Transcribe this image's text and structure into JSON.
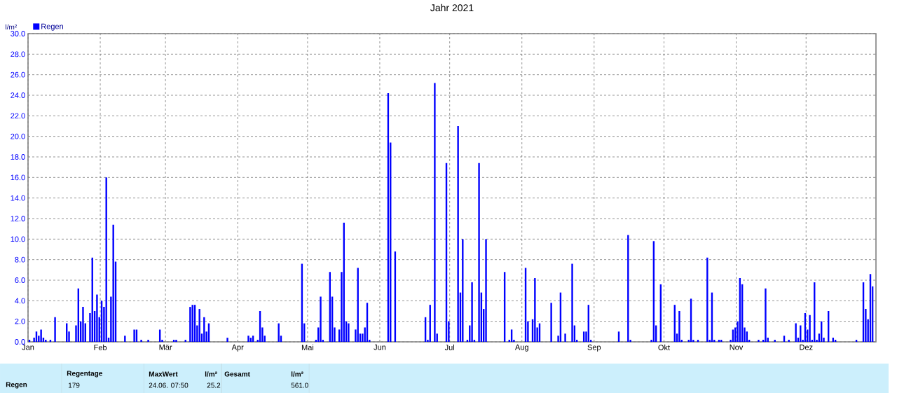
{
  "chart_data": {
    "type": "bar",
    "title": "Jahr 2021",
    "ylabel": "l/m²",
    "x": [
      "2021-01-01",
      "2021-01-03",
      "2021-01-04",
      "2021-01-05",
      "2021-01-06",
      "2021-01-07",
      "2021-01-08",
      "2021-01-10",
      "2021-01-12",
      "2021-01-17",
      "2021-01-18",
      "2021-01-21",
      "2021-01-22",
      "2021-01-23",
      "2021-01-24",
      "2021-01-25",
      "2021-01-27",
      "2021-01-28",
      "2021-01-29",
      "2021-01-30",
      "2021-01-31",
      "2021-02-01",
      "2021-02-02",
      "2021-02-03",
      "2021-02-04",
      "2021-02-05",
      "2021-02-06",
      "2021-02-07",
      "2021-02-11",
      "2021-02-15",
      "2021-02-16",
      "2021-02-18",
      "2021-02-21",
      "2021-02-26",
      "2021-02-27",
      "2021-03-04",
      "2021-03-05",
      "2021-03-09",
      "2021-03-11",
      "2021-03-12",
      "2021-03-13",
      "2021-03-14",
      "2021-03-15",
      "2021-03-16",
      "2021-03-17",
      "2021-03-18",
      "2021-03-19",
      "2021-03-27",
      "2021-04-05",
      "2021-04-06",
      "2021-04-07",
      "2021-04-09",
      "2021-04-10",
      "2021-04-11",
      "2021-04-12",
      "2021-04-18",
      "2021-04-19",
      "2021-04-28",
      "2021-04-29",
      "2021-05-04",
      "2021-05-05",
      "2021-05-06",
      "2021-05-07",
      "2021-05-10",
      "2021-05-11",
      "2021-05-12",
      "2021-05-14",
      "2021-05-15",
      "2021-05-16",
      "2021-05-17",
      "2021-05-18",
      "2021-05-21",
      "2021-05-22",
      "2021-05-23",
      "2021-05-24",
      "2021-05-25",
      "2021-05-26",
      "2021-05-27",
      "2021-06-04",
      "2021-06-05",
      "2021-06-07",
      "2021-06-20",
      "2021-06-21",
      "2021-06-22",
      "2021-06-24",
      "2021-06-25",
      "2021-06-29",
      "2021-06-30",
      "2021-07-04",
      "2021-07-05",
      "2021-07-06",
      "2021-07-08",
      "2021-07-09",
      "2021-07-10",
      "2021-07-11",
      "2021-07-13",
      "2021-07-14",
      "2021-07-15",
      "2021-07-16",
      "2021-07-24",
      "2021-07-26",
      "2021-07-27",
      "2021-07-28",
      "2021-08-02",
      "2021-08-03",
      "2021-08-05",
      "2021-08-06",
      "2021-08-07",
      "2021-08-08",
      "2021-08-13",
      "2021-08-16",
      "2021-08-17",
      "2021-08-19",
      "2021-08-22",
      "2021-08-23",
      "2021-08-24",
      "2021-08-27",
      "2021-08-28",
      "2021-08-29",
      "2021-08-30",
      "2021-09-11",
      "2021-09-15",
      "2021-09-16",
      "2021-09-25",
      "2021-09-26",
      "2021-09-27",
      "2021-09-29",
      "2021-10-05",
      "2021-10-06",
      "2021-10-07",
      "2021-10-08",
      "2021-10-11",
      "2021-10-12",
      "2021-10-13",
      "2021-10-15",
      "2021-10-19",
      "2021-10-20",
      "2021-10-21",
      "2021-10-22",
      "2021-10-24",
      "2021-10-25",
      "2021-10-29",
      "2021-10-30",
      "2021-10-31",
      "2021-11-01",
      "2021-11-02",
      "2021-11-03",
      "2021-11-04",
      "2021-11-05",
      "2021-11-06",
      "2021-11-10",
      "2021-11-12",
      "2021-11-13",
      "2021-11-14",
      "2021-11-17",
      "2021-11-21",
      "2021-11-23",
      "2021-11-26",
      "2021-11-27",
      "2021-11-28",
      "2021-11-29",
      "2021-11-30",
      "2021-12-01",
      "2021-12-02",
      "2021-12-03",
      "2021-12-04",
      "2021-12-05",
      "2021-12-06",
      "2021-12-07",
      "2021-12-08",
      "2021-12-10",
      "2021-12-12",
      "2021-12-13",
      "2021-12-22",
      "2021-12-25",
      "2021-12-26",
      "2021-12-27",
      "2021-12-28",
      "2021-12-29"
    ],
    "series": [
      {
        "name": "Regen",
        "color": "#0000ff",
        "values": [
          0.2,
          0.4,
          1.0,
          0.6,
          1.2,
          0.4,
          0.2,
          0.2,
          2.4,
          1.8,
          1.0,
          1.6,
          5.2,
          2.0,
          3.4,
          1.8,
          2.8,
          8.2,
          3.0,
          4.6,
          2.4,
          4.0,
          3.4,
          16.0,
          0.4,
          4.4,
          11.4,
          7.8,
          0.6,
          1.2,
          1.2,
          0.2,
          0.2,
          1.2,
          0.2,
          0.2,
          0.2,
          0.2,
          3.4,
          3.6,
          3.6,
          1.6,
          3.2,
          0.8,
          2.4,
          1.0,
          1.8,
          0.4,
          0.6,
          0.4,
          0.6,
          0.2,
          3.0,
          1.4,
          0.6,
          1.8,
          0.6,
          7.6,
          1.8,
          0.2,
          1.4,
          4.4,
          0.2,
          6.8,
          4.4,
          1.4,
          1.2,
          6.8,
          11.6,
          2.0,
          1.8,
          1.2,
          7.2,
          0.8,
          0.8,
          1.4,
          3.8,
          0.2,
          24.2,
          19.4,
          8.8,
          2.4,
          0.2,
          3.6,
          25.2,
          0.8,
          17.4,
          2.0,
          21.0,
          4.8,
          10.0,
          0.2,
          1.6,
          5.8,
          0.2,
          17.4,
          4.8,
          3.2,
          10.0,
          6.8,
          0.2,
          1.2,
          0.2,
          7.2,
          2.0,
          2.2,
          6.2,
          1.4,
          1.8,
          3.8,
          0.6,
          4.8,
          0.8,
          7.6,
          1.6,
          0.2,
          1.0,
          1.0,
          3.6,
          0.2,
          1.0,
          10.4,
          0.2,
          0.2,
          9.8,
          1.6,
          5.6,
          3.6,
          0.8,
          3.0,
          0.2,
          0.2,
          4.2,
          0.2,
          0.2,
          8.2,
          0.2,
          4.8,
          0.2,
          0.2,
          0.2,
          0.2,
          1.2,
          1.4,
          2.0,
          6.2,
          5.6,
          1.4,
          1.0,
          0.2,
          0.2,
          0.2,
          5.2,
          0.4,
          0.2,
          0.6,
          0.2,
          1.8,
          0.4,
          1.6,
          0.2,
          2.8,
          1.2,
          2.6,
          0.2,
          5.8,
          0.2,
          0.8,
          2.0,
          0.4,
          3.0,
          0.4,
          0.2,
          0.2,
          5.8,
          3.2,
          2.2,
          6.6,
          5.4
        ]
      }
    ],
    "xlim": [
      "2021-01-01",
      "2021-12-31"
    ],
    "xticks": [
      {
        "value": "2021-01-01",
        "label": "Jan"
      },
      {
        "value": "2021-02-01",
        "label": "Feb"
      },
      {
        "value": "2021-03-01",
        "label": "Mär"
      },
      {
        "value": "2021-04-01",
        "label": "Apr"
      },
      {
        "value": "2021-05-01",
        "label": "Mai"
      },
      {
        "value": "2021-06-01",
        "label": "Jun"
      },
      {
        "value": "2021-07-01",
        "label": "Jul"
      },
      {
        "value": "2021-08-01",
        "label": "Aug"
      },
      {
        "value": "2021-09-01",
        "label": "Sep"
      },
      {
        "value": "2021-10-01",
        "label": "Okt"
      },
      {
        "value": "2021-11-01",
        "label": "Nov"
      },
      {
        "value": "2021-12-01",
        "label": "Dez"
      }
    ],
    "ylim": [
      0,
      30
    ],
    "yticks": [
      {
        "value": 0,
        "label": "0.0"
      },
      {
        "value": 2,
        "label": "2.0"
      },
      {
        "value": 4,
        "label": "4.0"
      },
      {
        "value": 6,
        "label": "6.0"
      },
      {
        "value": 8,
        "label": "8.0"
      },
      {
        "value": 10,
        "label": "10.0"
      },
      {
        "value": 12,
        "label": "12.0"
      },
      {
        "value": 14,
        "label": "14.0"
      },
      {
        "value": 16,
        "label": "16.0"
      },
      {
        "value": 18,
        "label": "18.0"
      },
      {
        "value": 20,
        "label": "20.0"
      },
      {
        "value": 22,
        "label": "22.0"
      },
      {
        "value": 24,
        "label": "24.0"
      },
      {
        "value": 26,
        "label": "26.0"
      },
      {
        "value": 28,
        "label": "28.0"
      },
      {
        "value": 30,
        "label": "30.0"
      }
    ],
    "grid": true,
    "legend": "top left",
    "annotations": [
      "Regen",
      "Regentage",
      "179",
      "MaxWert",
      "l/m²",
      "24.06. 07:50",
      "25.2",
      "Gesamt",
      "l/m²",
      "561.0"
    ]
  }
}
